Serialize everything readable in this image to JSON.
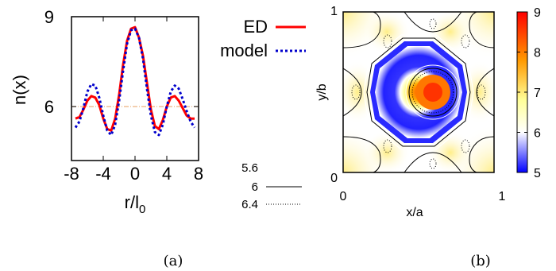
{
  "chart_data": [
    {
      "type": "line",
      "panel_label": "(a)",
      "xlabel": "r/l",
      "xlabel_subscript": "0",
      "ylabel": "n(x)",
      "xlim": [
        -8,
        8
      ],
      "ylim": [
        4.2,
        9
      ],
      "x_ticks": [
        "-8",
        "-4",
        "0",
        "4",
        "8"
      ],
      "y_ticks": [
        "6",
        "9"
      ],
      "reference_line": {
        "y": 6.0,
        "color": "#e8a060"
      },
      "series": [
        {
          "name": "ED",
          "color": "#ff0000",
          "style": "solid",
          "x": [
            -7.5,
            -7,
            -6.5,
            -6,
            -5.5,
            -5,
            -4.5,
            -4,
            -3.5,
            -3,
            -2.5,
            -2,
            -1.5,
            -1,
            -0.5,
            0,
            0.5,
            1,
            1.5,
            2,
            2.5,
            3,
            3.5,
            4,
            4.5,
            5,
            5.5,
            6,
            6.5,
            7,
            7.5
          ],
          "y": [
            5.6,
            5.65,
            5.9,
            6.2,
            6.35,
            6.3,
            6.05,
            5.6,
            5.25,
            5.2,
            5.6,
            6.4,
            7.4,
            8.2,
            8.6,
            8.65,
            8.3,
            7.7,
            6.8,
            5.9,
            5.35,
            5.25,
            5.55,
            6.0,
            6.3,
            6.35,
            6.2,
            5.95,
            5.7,
            5.6,
            5.6
          ]
        },
        {
          "name": "model",
          "color": "#0000cc",
          "style": "dotted",
          "x": [
            -7.5,
            -7,
            -6.5,
            -6,
            -5.5,
            -5,
            -4.5,
            -4,
            -3.5,
            -3,
            -2.5,
            -2,
            -1.5,
            -1,
            -0.5,
            0,
            0.5,
            1,
            1.5,
            2,
            2.5,
            3,
            3.5,
            4,
            4.5,
            5,
            5.5,
            6,
            6.5,
            7,
            7.5
          ],
          "y": [
            5.3,
            5.5,
            5.95,
            6.5,
            6.75,
            6.7,
            6.3,
            5.7,
            5.2,
            5.05,
            5.4,
            6.2,
            7.2,
            8.1,
            8.55,
            8.6,
            8.3,
            7.6,
            6.6,
            5.7,
            5.15,
            5.05,
            5.4,
            6.0,
            6.5,
            6.7,
            6.6,
            6.25,
            5.85,
            5.5,
            5.3
          ]
        }
      ]
    },
    {
      "type": "heatmap",
      "panel_label": "(b)",
      "xlabel": "x/a",
      "ylabel": "y/b",
      "xlim": [
        0,
        1
      ],
      "ylim": [
        0,
        1
      ],
      "x_ticks": [
        "0",
        "1"
      ],
      "y_ticks": [
        "0",
        "1"
      ],
      "colorbar": {
        "min": 5,
        "max": 9,
        "ticks": [
          "5",
          "6",
          "7",
          "8",
          "9"
        ],
        "colors": [
          "#0000ff",
          "#ffffff",
          "#ffff66",
          "#ff9900",
          "#ff0000"
        ]
      },
      "contour_levels": [
        {
          "value": "5.6",
          "style": "solid-white"
        },
        {
          "value": "6",
          "style": "solid"
        },
        {
          "value": "6.4",
          "style": "dotted"
        }
      ]
    }
  ]
}
